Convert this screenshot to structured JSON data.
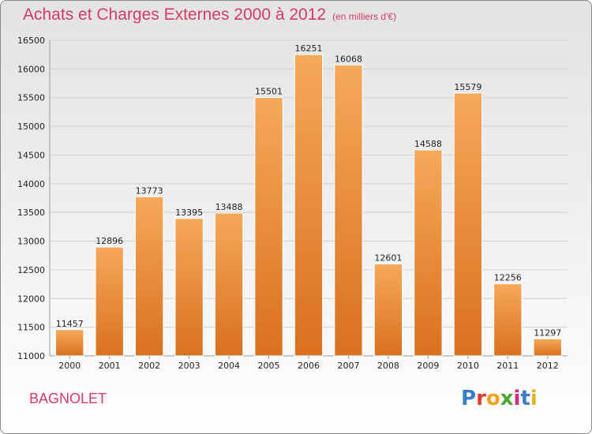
{
  "header": {
    "title": "Achats et Charges Externes 2000 à 2012",
    "unit": "(en milliers d'€)"
  },
  "commune": "BAGNOLET",
  "logo": {
    "text": "Proxiti",
    "colors": [
      "#3b7ec8",
      "#e23a2c",
      "#f2a31b",
      "#4aa832",
      "#d6297d",
      "#3b7ec8",
      "#e5b01d"
    ]
  },
  "colors": {
    "bar_top": "#f6a85a",
    "bar_bottom": "#d9711f",
    "accent": "#d63a67"
  },
  "chart_data": {
    "type": "bar",
    "title": "Achats et Charges Externes 2000 à 2012",
    "subtitle": "(en milliers d'€)",
    "categories": [
      "2000",
      "2001",
      "2002",
      "2003",
      "2004",
      "2005",
      "2006",
      "2007",
      "2008",
      "2009",
      "2010",
      "2011",
      "2012"
    ],
    "values": [
      11457,
      12896,
      13773,
      13395,
      13488,
      15501,
      16251,
      16068,
      12601,
      14588,
      15579,
      12256,
      11297
    ],
    "ylim": [
      11000,
      16500
    ],
    "yticks": [
      11000,
      11500,
      12000,
      12500,
      13000,
      13500,
      14000,
      14500,
      15000,
      15500,
      16000,
      16500
    ],
    "grid": true,
    "data_labels": true
  }
}
